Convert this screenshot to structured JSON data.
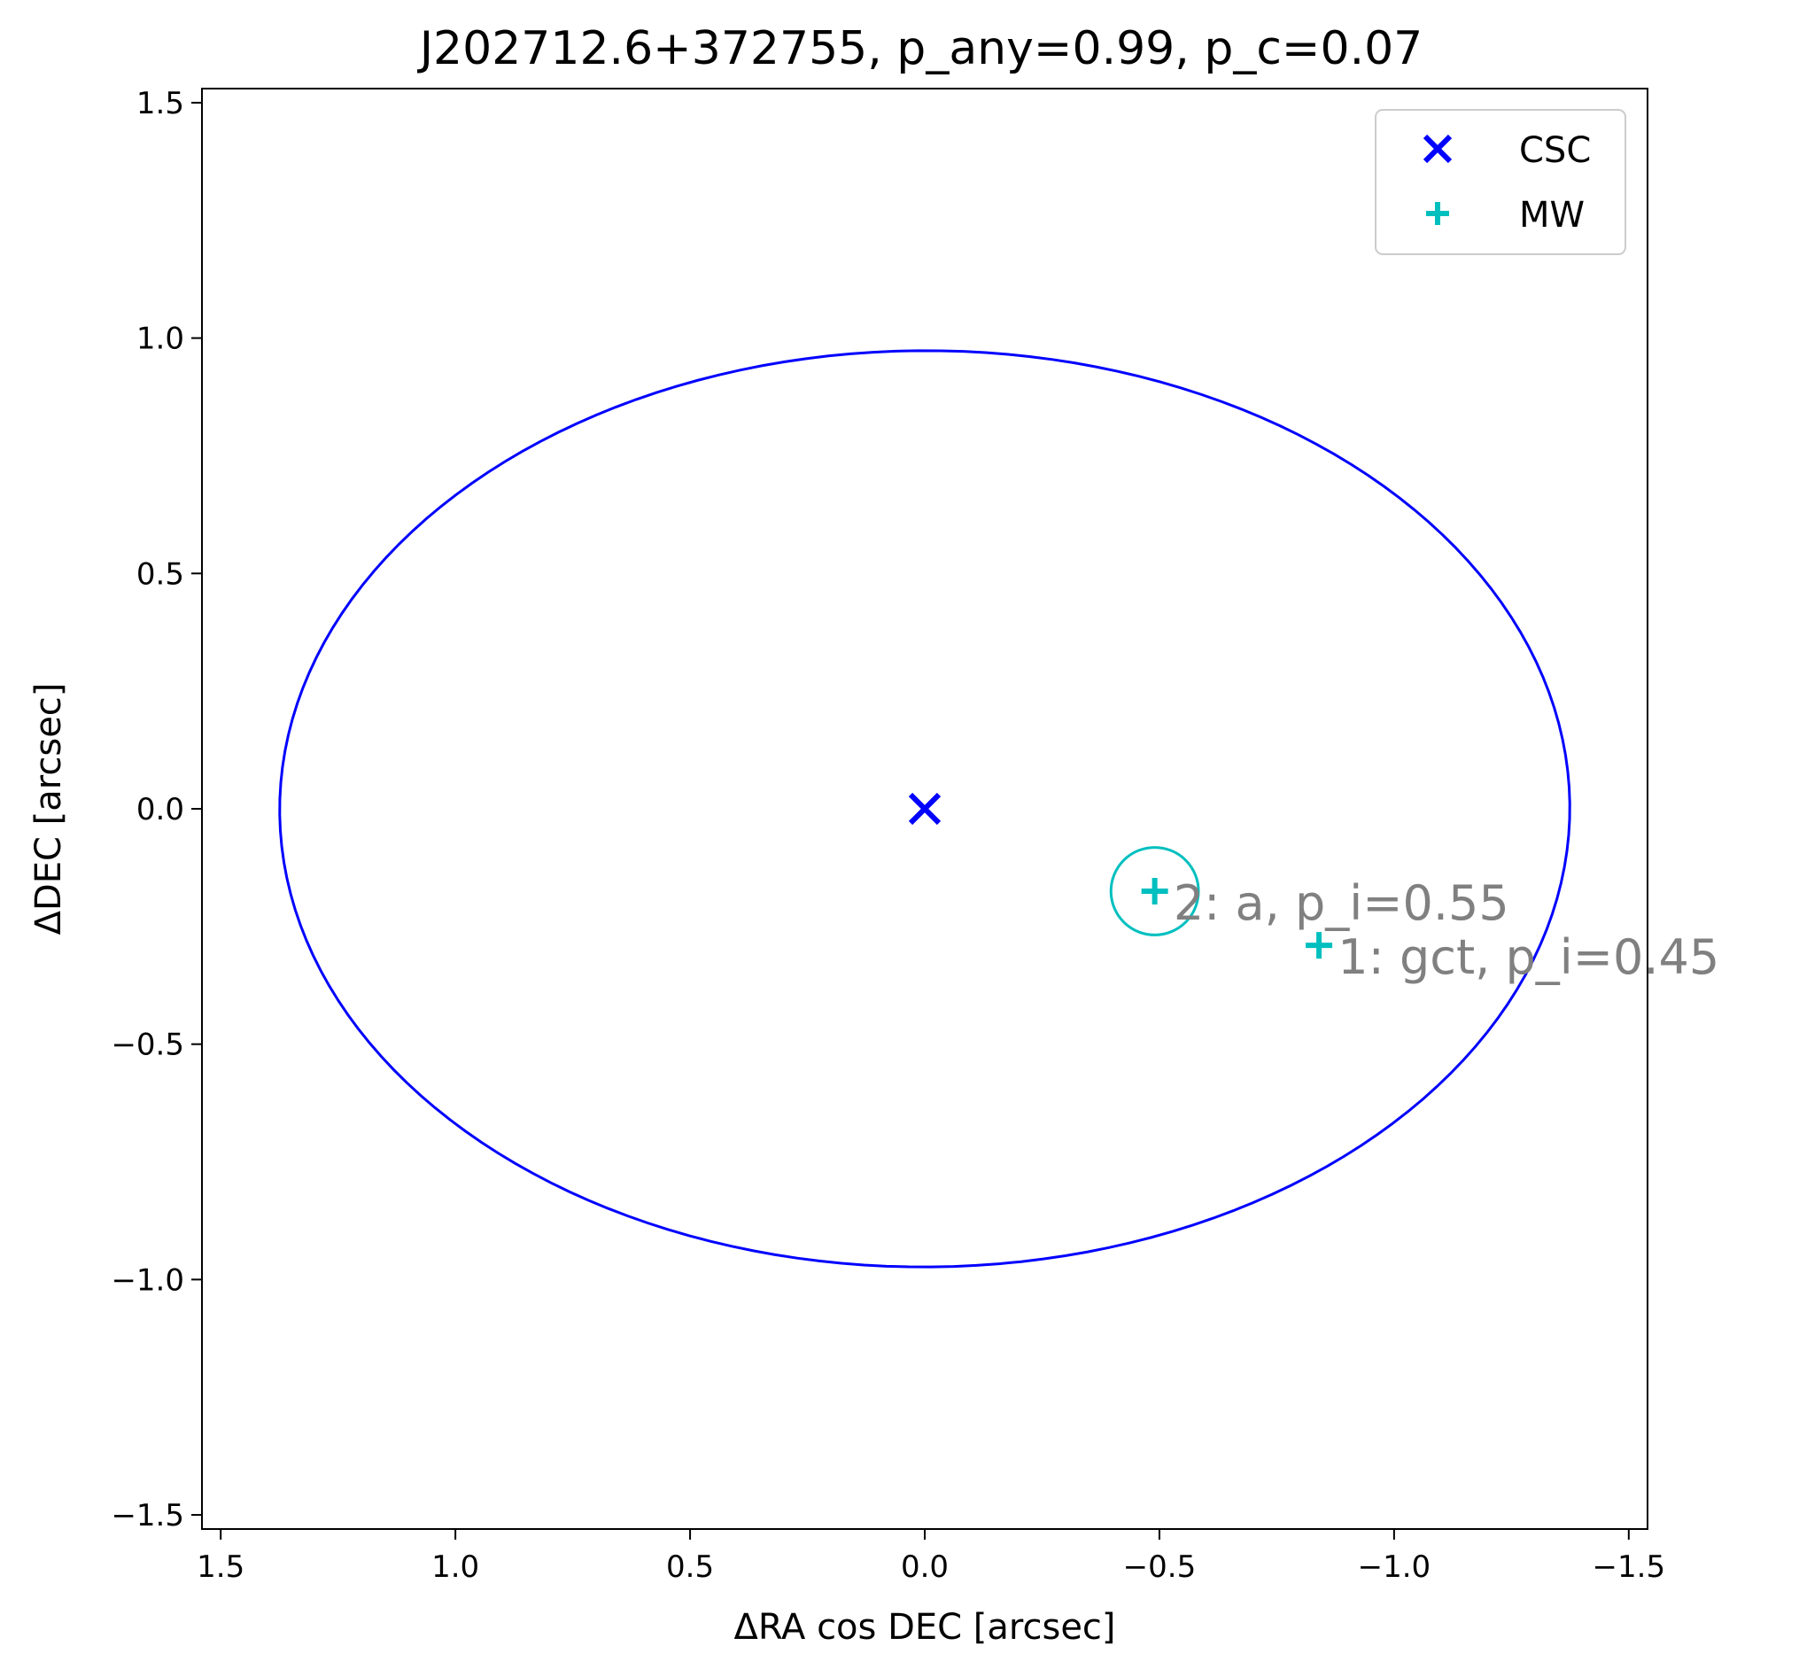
{
  "chart_data": {
    "type": "scatter",
    "title": "J202712.6+372755, p_any=0.99, p_c=0.07",
    "xlabel": "ΔRA cos DEC [arcsec]",
    "ylabel": "ΔDEC [arcsec]",
    "xlim": [
      1.54,
      -1.54
    ],
    "ylim": [
      -1.53,
      1.53
    ],
    "x_inverted": true,
    "xticks": [
      1.5,
      1.0,
      0.5,
      0.0,
      -0.5,
      -1.0,
      -1.5
    ],
    "xtick_labels": [
      "1.5",
      "1.0",
      "0.5",
      "0.0",
      "−0.5",
      "−1.0",
      "−1.5"
    ],
    "yticks": [
      1.5,
      1.0,
      0.5,
      0.0,
      -0.5,
      -1.0,
      -1.5
    ],
    "ytick_labels": [
      "1.5",
      "1.0",
      "0.5",
      "0.0",
      "−0.5",
      "−1.0",
      "−1.5"
    ],
    "grid": false,
    "legend_position": "top-right",
    "series": [
      {
        "name": "CSC",
        "marker": "x",
        "color": "#0000ff",
        "points": [
          {
            "x": 0.0,
            "y": 0.0
          }
        ]
      },
      {
        "name": "MW",
        "marker": "+",
        "color": "#00bfbf",
        "points": [
          {
            "x": -0.49,
            "y": -0.175
          },
          {
            "x": -0.84,
            "y": -0.29
          }
        ]
      }
    ],
    "error_ellipse": {
      "color": "#0000ff",
      "center": [
        0.0,
        0.0
      ],
      "points": [
        [
          1.37,
          -0.08
        ],
        [
          -1.37,
          0.08
        ],
        [
          0.11,
          0.97
        ],
        [
          -0.11,
          -0.97
        ]
      ]
    },
    "highlight_circle": {
      "color": "#00bfbf",
      "center": [
        -0.49,
        -0.175
      ],
      "radius": 0.093
    },
    "annotations": [
      {
        "text": "2: a, p_i=0.55",
        "x": -0.53,
        "y": -0.235
      },
      {
        "text": "1: gct, p_i=0.45",
        "x": -0.88,
        "y": -0.35
      }
    ]
  }
}
